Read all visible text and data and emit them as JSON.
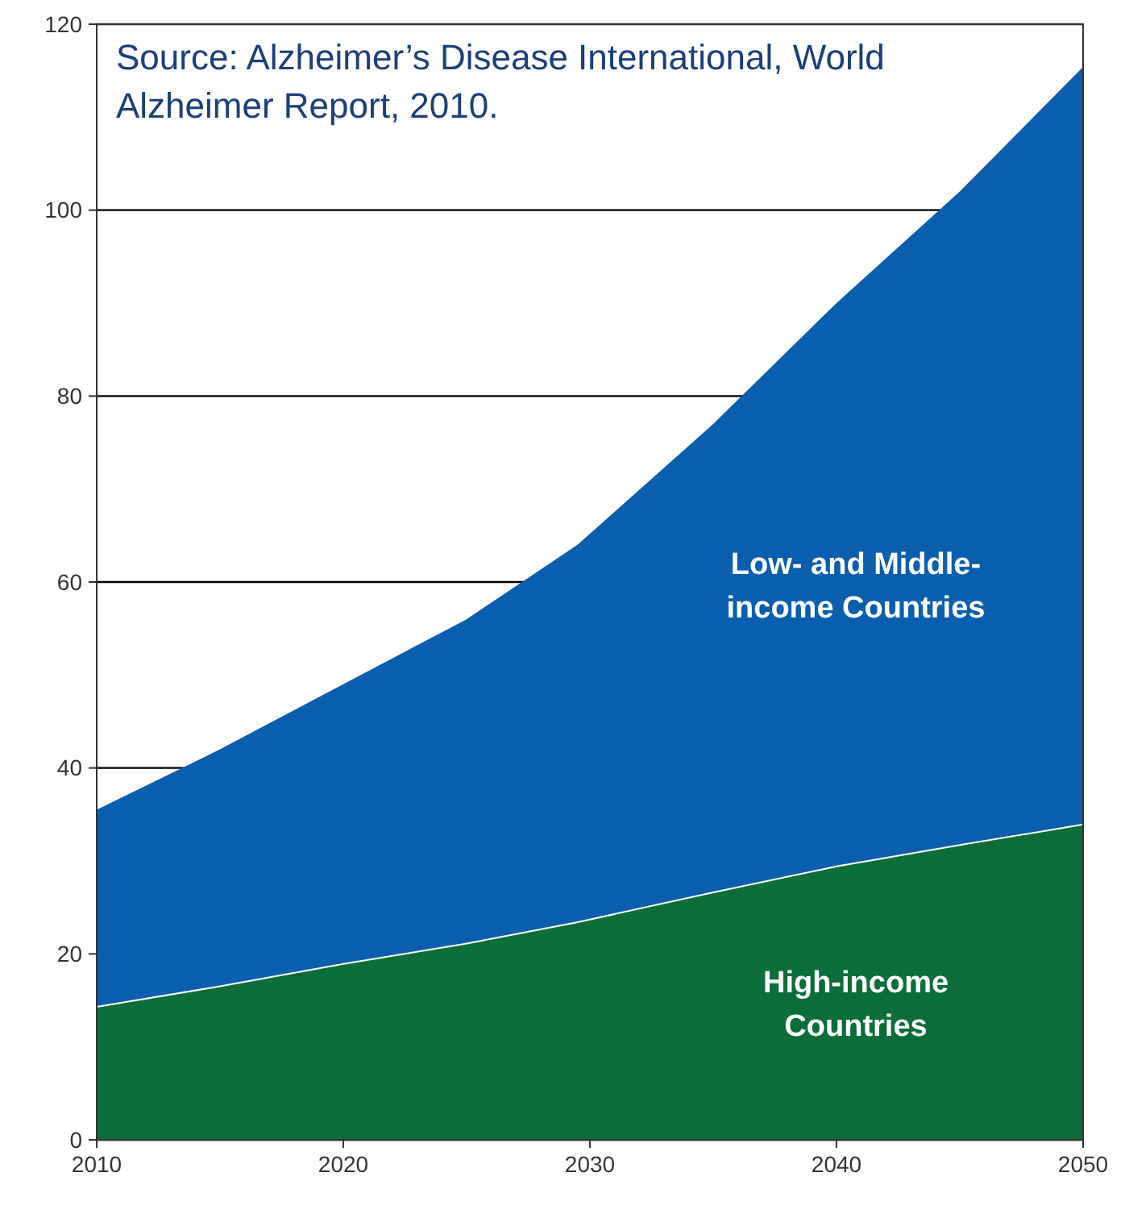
{
  "chart_data": {
    "type": "area",
    "stacked": true,
    "x": [
      2010,
      2015,
      2020,
      2025,
      2029.5,
      2035,
      2040,
      2045,
      2050
    ],
    "series": [
      {
        "name": "High-income Countries",
        "color": "#0b6e38",
        "values": [
          14.4,
          16.6,
          19,
          21.2,
          23.5,
          26.7,
          29.5,
          31.8,
          34
        ]
      },
      {
        "name": "Low- and Middle-income Countries",
        "color": "#0a5eae",
        "values": [
          21.1,
          25.4,
          30,
          34.8,
          40.5,
          50.3,
          60.5,
          70.2,
          81.4
        ]
      }
    ],
    "xlim": [
      2010,
      2050
    ],
    "xticks": [
      2010,
      2020,
      2030,
      2040,
      2050
    ],
    "ylim": [
      0,
      120
    ],
    "yticks": [
      0,
      20,
      40,
      60,
      80,
      100,
      120
    ],
    "grid": "y",
    "annotations": [
      "Source: Alzheimer’s Disease International, World Alzheimer Report, 2010."
    ]
  }
}
